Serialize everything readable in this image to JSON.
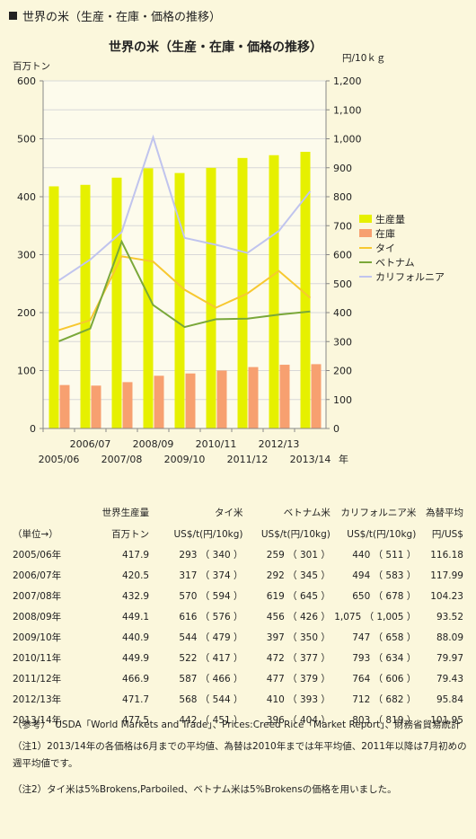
{
  "heading": "世界の米（生産・在庫・価格の推移）",
  "chart_data": {
    "type": "bar",
    "title": "世界の米（生産・在庫・価格の推移）",
    "ylabel_left": "百万トン",
    "ylabel_right": "円/10ｋｇ",
    "xlabel": "年",
    "ylim_left": [
      0,
      600
    ],
    "ylim_right": [
      0,
      1200
    ],
    "yticks_left": [
      "0",
      "100",
      "200",
      "300",
      "400",
      "500",
      "600"
    ],
    "yticks_right": [
      "0",
      "100",
      "200",
      "300",
      "400",
      "500",
      "600",
      "700",
      "800",
      "900",
      "1,000",
      "1,100",
      "1,200"
    ],
    "categories": [
      "2005/06",
      "2006/07",
      "2007/08",
      "2008/09",
      "2009/10",
      "2010/11",
      "2011/12",
      "2012/13",
      "2013/14"
    ],
    "series": [
      {
        "name": "生産量",
        "axis": "left",
        "kind": "bar",
        "color": "#e6f000",
        "values": [
          417.9,
          420.5,
          432.9,
          449.1,
          440.9,
          449.9,
          466.9,
          471.7,
          477.5
        ]
      },
      {
        "name": "在庫",
        "axis": "left",
        "kind": "bar",
        "color": "#f7a070",
        "values": [
          75,
          74,
          80,
          91,
          95,
          100,
          106,
          110,
          111
        ]
      },
      {
        "name": "タイ",
        "axis": "right",
        "kind": "line",
        "color": "#f7c830",
        "values": [
          340,
          374,
          594,
          576,
          479,
          417,
          466,
          544,
          451
        ]
      },
      {
        "name": "ベトナム",
        "axis": "right",
        "kind": "line",
        "color": "#7aa83a",
        "values": [
          301,
          345,
          645,
          426,
          350,
          377,
          379,
          393,
          404
        ]
      },
      {
        "name": "カリフォルニア",
        "axis": "right",
        "kind": "line",
        "color": "#c0c4ee",
        "values": [
          511,
          583,
          678,
          1005,
          658,
          634,
          606,
          682,
          819
        ]
      }
    ],
    "grid": true,
    "legend": "right"
  },
  "table": {
    "header1": [
      "",
      "世界生産量",
      "タイ米",
      "ベトナム米",
      "カリフォルニア米",
      "為替平均"
    ],
    "header2": [
      "（単位→）",
      "百万トン",
      "US$/t(円/10kg)",
      "US$/t(円/10kg)",
      "US$/t(円/10kg)",
      "円/US$"
    ],
    "rows": [
      [
        "2005/06年",
        "417.9",
        "293 （ 340 ）",
        "259 （ 301 ）",
        "440 （ 511 ）",
        "116.18"
      ],
      [
        "2006/07年",
        "420.5",
        "317 （ 374 ）",
        "292 （ 345 ）",
        "494 （ 583 ）",
        "117.99"
      ],
      [
        "2007/08年",
        "432.9",
        "570 （ 594 ）",
        "619 （ 645 ）",
        "650 （ 678 ）",
        "104.23"
      ],
      [
        "2008/09年",
        "449.1",
        "616 （ 576 ）",
        "456 （ 426 ）",
        "1,075 （ 1,005 ）",
        "93.52"
      ],
      [
        "2009/10年",
        "440.9",
        "544 （ 479 ）",
        "397 （ 350 ）",
        "747 （ 658 ）",
        "88.09"
      ],
      [
        "2010/11年",
        "449.9",
        "522 （ 417 ）",
        "472 （ 377 ）",
        "793 （ 634 ）",
        "79.97"
      ],
      [
        "2011/12年",
        "466.9",
        "587 （ 466 ）",
        "477 （ 379 ）",
        "764 （ 606 ）",
        "79.43"
      ],
      [
        "2012/13年",
        "471.7",
        "568 （ 544 ）",
        "410 （ 393 ）",
        "712 （ 682 ）",
        "95.84"
      ],
      [
        "2013/14年",
        "477.5",
        "442 （ 451 ）",
        "396 （ 404 ）",
        "803 （ 819 ）",
        "101.95"
      ]
    ]
  },
  "notes": {
    "source": "（参考）　USDA「World Markets and Trade」、Prices:Creed Rice「Market Report」、財務省貿易統計",
    "note1": "（注1）2013/14年の各価格は6月までの平均値、為替は2010年までは年平均値、2011年以降は7月初めの週平均値です。",
    "note2": "（注2）タイ米は5%Brokens,Parboiled、ベトナム米は5%Brokensの価格を用いました。"
  }
}
